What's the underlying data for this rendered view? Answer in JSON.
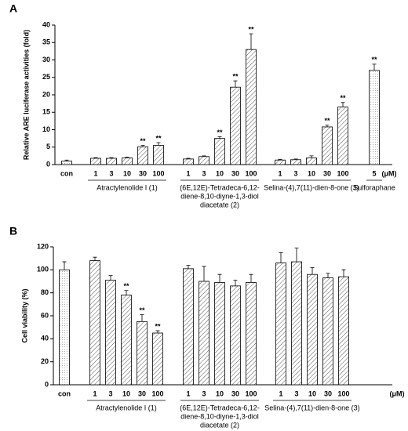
{
  "chart_data": [
    {
      "type": "bar",
      "panel": "A",
      "y_label": "Relative ARE luciferase activities (fold)",
      "unit": "(μM)",
      "ylim": [
        0,
        40
      ],
      "yticks": [
        0,
        5,
        10,
        15,
        20,
        25,
        30,
        35,
        40
      ],
      "groups": [
        {
          "categories": [
            "con"
          ],
          "values": [
            1.0
          ],
          "errors": [
            0.3
          ],
          "annotations": [
            null
          ],
          "pattern": "dots"
        },
        {
          "label": [
            "Atractylenolide I (1)"
          ],
          "categories": [
            "1",
            "3",
            "10",
            "30",
            "100"
          ],
          "values": [
            1.8,
            1.8,
            1.9,
            5.1,
            5.5
          ],
          "errors": [
            0.2,
            0.2,
            0.2,
            0.4,
            0.8
          ],
          "annotations": [
            null,
            null,
            null,
            "**",
            "**"
          ],
          "pattern": "hatch"
        },
        {
          "label": [
            "(6E,12E)-Tetradeca-6,12-",
            "diene-8,10-diyne-1,3-diol",
            "diacetate (2)"
          ],
          "categories": [
            "1",
            "3",
            "10",
            "30",
            "100"
          ],
          "values": [
            1.6,
            2.3,
            7.5,
            22.2,
            33.0
          ],
          "errors": [
            0.2,
            0.2,
            0.5,
            1.8,
            4.5
          ],
          "annotations": [
            null,
            null,
            "**",
            "**",
            "**"
          ],
          "pattern": "hatch"
        },
        {
          "label": [
            "Selina-(4),7(11)-dien-8-one (3)"
          ],
          "categories": [
            "1",
            "3",
            "10",
            "30",
            "100"
          ],
          "values": [
            1.3,
            1.4,
            1.9,
            10.8,
            16.5
          ],
          "errors": [
            0.2,
            0.2,
            0.6,
            0.5,
            1.3
          ],
          "annotations": [
            null,
            null,
            null,
            "**",
            "**"
          ],
          "pattern": "hatch"
        },
        {
          "label": [
            "Sulforaphane"
          ],
          "categories": [
            "5"
          ],
          "values": [
            27.0
          ],
          "errors": [
            1.8
          ],
          "annotations": [
            "**"
          ],
          "pattern": "dots"
        }
      ]
    },
    {
      "type": "bar",
      "panel": "B",
      "y_label": "Cell viability (%)",
      "unit": "(μM)",
      "ylim": [
        0,
        120
      ],
      "yticks": [
        0,
        20,
        40,
        60,
        80,
        100,
        120
      ],
      "groups": [
        {
          "categories": [
            "con"
          ],
          "values": [
            100
          ],
          "errors": [
            7
          ],
          "annotations": [
            null
          ],
          "pattern": "dots"
        },
        {
          "label": [
            "Atractylenolide I (1)"
          ],
          "categories": [
            "1",
            "3",
            "10",
            "30",
            "100"
          ],
          "values": [
            108,
            91,
            78,
            55,
            45
          ],
          "errors": [
            3,
            4,
            4,
            6,
            2
          ],
          "annotations": [
            null,
            null,
            "**",
            "**",
            "**"
          ],
          "pattern": "hatch"
        },
        {
          "label": [
            "(6E,12E)-Tetradeca-6,12-",
            "diene-8,10-diyne-1,3-diol",
            "diacetate (2)"
          ],
          "categories": [
            "1",
            "3",
            "10",
            "30",
            "100"
          ],
          "values": [
            101,
            90,
            89,
            86,
            89
          ],
          "errors": [
            3,
            13,
            7,
            5,
            7
          ],
          "annotations": [
            null,
            null,
            null,
            null,
            null
          ],
          "pattern": "hatch"
        },
        {
          "label": [
            "Selina-(4),7(11)-dien-8-one (3)"
          ],
          "categories": [
            "1",
            "3",
            "10",
            "30",
            "100"
          ],
          "values": [
            106,
            107,
            96,
            93,
            94
          ],
          "errors": [
            9,
            12,
            6,
            4,
            6
          ],
          "annotations": [
            null,
            null,
            null,
            null,
            null
          ],
          "pattern": "hatch"
        }
      ]
    }
  ]
}
